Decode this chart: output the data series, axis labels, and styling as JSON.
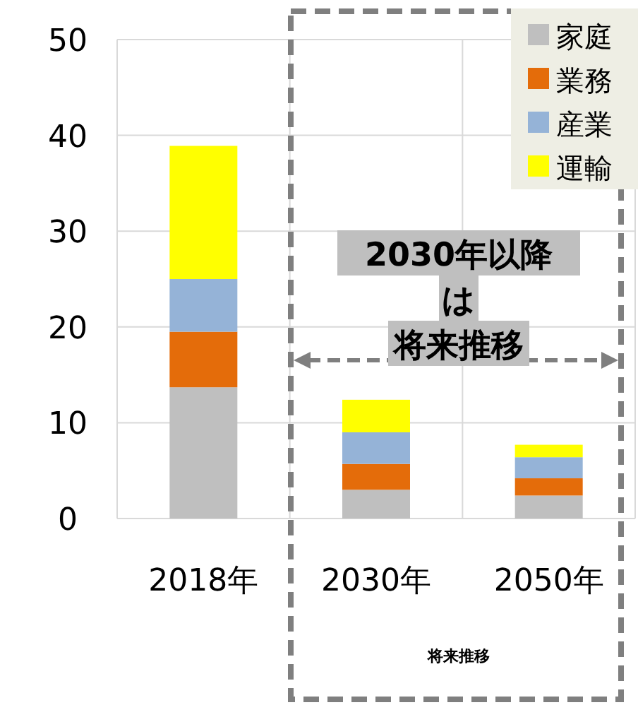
{
  "chart_data": {
    "type": "bar",
    "stacked": true,
    "categories": [
      "2018年",
      "2030年",
      "2050年"
    ],
    "series": [
      {
        "name": "家庭",
        "color": "#bfbfbf",
        "values": [
          13.7,
          3.0,
          2.4
        ]
      },
      {
        "name": "業務",
        "color": "#e46c0a",
        "values": [
          5.8,
          2.7,
          1.8
        ]
      },
      {
        "name": "産業",
        "color": "#95b3d7",
        "values": [
          5.5,
          3.3,
          2.2
        ]
      },
      {
        "name": "運輸",
        "color": "#ffff00",
        "values": [
          13.9,
          3.4,
          1.3
        ]
      }
    ],
    "ylim": [
      0,
      50
    ],
    "yticks": [
      0,
      10,
      20,
      30,
      40,
      50
    ],
    "grid": true,
    "legend": "top right",
    "annotations": [
      "2030年以降",
      "は",
      "将来推移",
      "将来推移"
    ]
  }
}
